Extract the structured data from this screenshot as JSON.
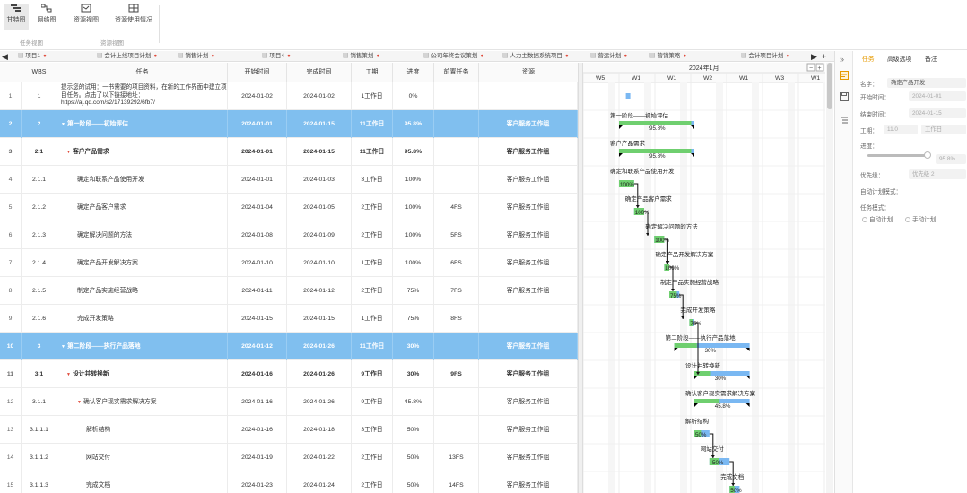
{
  "toolbar": {
    "buttons": [
      {
        "label": "甘特图",
        "icon": "gantt-icon"
      },
      {
        "label": "网络图",
        "icon": "network-icon"
      },
      {
        "label": "资源视图",
        "icon": "resource-icon"
      },
      {
        "label": "资源使用情况",
        "icon": "resource-usage-icon"
      }
    ],
    "groups": [
      "任务视图",
      "资源视图"
    ]
  },
  "tabs": {
    "items": [
      "项目1",
      "会计上线项目计划",
      "销售计划",
      "项目4",
      "销售策划",
      "公司年终会议策划",
      "人力主数据系统项目",
      "营运计划",
      "营销策略",
      "会计项目计划"
    ]
  },
  "grid": {
    "columns": [
      "WBS",
      "任务",
      "开始时间",
      "完成时间",
      "工期",
      "进度",
      "前置任务",
      "资源"
    ],
    "rows": [
      {
        "num": "1",
        "wbs": "1",
        "task": "提示您的试用：一书需要的项目资料，在新的工作界面中建立项目任务。点击了以下链接地址：https://aj.qq.com/s2/17139292/6fb7/",
        "start": "2024-01-02",
        "end": "2024-01-02",
        "dur": "1工作日",
        "prog": "0%",
        "pred": "",
        "res": "",
        "summary": false,
        "indent": 0
      },
      {
        "num": "2",
        "wbs": "2",
        "task": "第一阶段——初始评估",
        "start": "2024-01-01",
        "end": "2024-01-15",
        "dur": "11工作日",
        "prog": "95.8%",
        "pred": "",
        "res": "客户服务工作组",
        "summary": true,
        "indent": 0
      },
      {
        "num": "3",
        "wbs": "2.1",
        "task": "客户产品需求",
        "start": "2024-01-01",
        "end": "2024-01-15",
        "dur": "11工作日",
        "prog": "95.8%",
        "pred": "",
        "res": "客户服务工作组",
        "summary": false,
        "bold": true,
        "indent": 1
      },
      {
        "num": "4",
        "wbs": "2.1.1",
        "task": "确定和联系产品使用开发",
        "start": "2024-01-01",
        "end": "2024-01-03",
        "dur": "3工作日",
        "prog": "100%",
        "pred": "",
        "res": "客户服务工作组",
        "summary": false,
        "indent": 2
      },
      {
        "num": "5",
        "wbs": "2.1.2",
        "task": "确定产品客户需求",
        "start": "2024-01-04",
        "end": "2024-01-05",
        "dur": "2工作日",
        "prog": "100%",
        "pred": "4FS",
        "res": "客户服务工作组",
        "summary": false,
        "indent": 2
      },
      {
        "num": "6",
        "wbs": "2.1.3",
        "task": "确定解决问题的方法",
        "start": "2024-01-08",
        "end": "2024-01-09",
        "dur": "2工作日",
        "prog": "100%",
        "pred": "5FS",
        "res": "客户服务工作组",
        "summary": false,
        "indent": 2
      },
      {
        "num": "7",
        "wbs": "2.1.4",
        "task": "确定产品开发解决方案",
        "start": "2024-01-10",
        "end": "2024-01-10",
        "dur": "1工作日",
        "prog": "100%",
        "pred": "6FS",
        "res": "客户服务工作组",
        "summary": false,
        "indent": 2
      },
      {
        "num": "8",
        "wbs": "2.1.5",
        "task": "制定产品实施经营战略",
        "start": "2024-01-11",
        "end": "2024-01-12",
        "dur": "2工作日",
        "prog": "75%",
        "pred": "7FS",
        "res": "客户服务工作组",
        "summary": false,
        "indent": 2
      },
      {
        "num": "9",
        "wbs": "2.1.6",
        "task": "完成开发策略",
        "start": "2024-01-15",
        "end": "2024-01-15",
        "dur": "1工作日",
        "prog": "75%",
        "pred": "8FS",
        "res": "",
        "summary": false,
        "indent": 2
      },
      {
        "num": "10",
        "wbs": "3",
        "task": "第二阶段——执行产品落地",
        "start": "2024-01-12",
        "end": "2024-01-26",
        "dur": "11工作日",
        "prog": "30%",
        "pred": "",
        "res": "客户服务工作组",
        "summary": true,
        "indent": 0
      },
      {
        "num": "11",
        "wbs": "3.1",
        "task": "设计并转换新",
        "start": "2024-01-16",
        "end": "2024-01-26",
        "dur": "9工作日",
        "prog": "30%",
        "pred": "9FS",
        "res": "客户服务工作组",
        "summary": false,
        "bold": true,
        "indent": 1
      },
      {
        "num": "12",
        "wbs": "3.1.1",
        "task": "确认客户现实需求解决方案",
        "start": "2024-01-16",
        "end": "2024-01-26",
        "dur": "9工作日",
        "prog": "45.8%",
        "pred": "",
        "res": "客户服务工作组",
        "summary": false,
        "indent": 2
      },
      {
        "num": "13",
        "wbs": "3.1.1.1",
        "task": "解析结构",
        "start": "2024-01-16",
        "end": "2024-01-18",
        "dur": "3工作日",
        "prog": "50%",
        "pred": "",
        "res": "客户服务工作组",
        "summary": false,
        "indent": 3
      },
      {
        "num": "14",
        "wbs": "3.1.1.2",
        "task": "网站交付",
        "start": "2024-01-19",
        "end": "2024-01-22",
        "dur": "2工作日",
        "prog": "50%",
        "pred": "13FS",
        "res": "客户服务工作组",
        "summary": false,
        "indent": 3
      },
      {
        "num": "15",
        "wbs": "3.1.1.3",
        "task": "完成文档",
        "start": "2024-01-23",
        "end": "2024-01-24",
        "dur": "2工作日",
        "prog": "50%",
        "pred": "14FS",
        "res": "客户服务工作组",
        "summary": false,
        "indent": 3
      }
    ]
  },
  "gantt": {
    "month": "2024年1月",
    "weeks": [
      "W5",
      "W1",
      "W1",
      "W2",
      "W1",
      "W3",
      "W1"
    ],
    "bar_labels": [
      {
        "text": "第一阶段——初始评估",
        "pct": "95.8%"
      },
      {
        "text": "客户产品需求",
        "pct": "95.8%"
      },
      {
        "text": "确定和联系产品使用开发",
        "pct": "100%"
      },
      {
        "text": "确定产品客户需求",
        "pct": "100%"
      },
      {
        "text": "确定解决问题的方法",
        "pct": "100%"
      },
      {
        "text": "确定产品开发解决方案",
        "pct": "100%"
      },
      {
        "text": "制定产品实施经营战略",
        "pct": "75%"
      },
      {
        "text": "完成开发策略",
        "pct": "75%"
      },
      {
        "text": "第二阶段——执行产品落地",
        "pct": "30%"
      },
      {
        "text": "设计并转换新",
        "pct": "30%"
      },
      {
        "text": "确认客户现实需求解决方案",
        "pct": "45.8%"
      },
      {
        "text": "解析结构",
        "pct": "50%"
      },
      {
        "text": "网站交付",
        "pct": "50%"
      },
      {
        "text": "完成文档",
        "pct": "50%"
      }
    ],
    "colors": {
      "done": "#6fcf6f",
      "planned": "#7ab8f2",
      "summary": "#6fcf6f"
    }
  },
  "panel": {
    "tabs": [
      "任务",
      "高级选项",
      "备注"
    ],
    "labels": {
      "name": "名字：",
      "start": "开始时间：",
      "end": "结束时间：",
      "duration": "工期：",
      "progress": "进度：",
      "priority": "优先级：",
      "mode": "任务模式：",
      "mode_auto": "自动计划",
      "mode_manual": "手动计划",
      "auto_sched": "自动计划模式："
    },
    "values": {
      "name": "确定产品开发",
      "start": "2024-01-01",
      "end": "2024-01-15",
      "duration": "11.0",
      "unit": "工作日",
      "progress": "95.8%",
      "priority": "优先级 2"
    }
  }
}
